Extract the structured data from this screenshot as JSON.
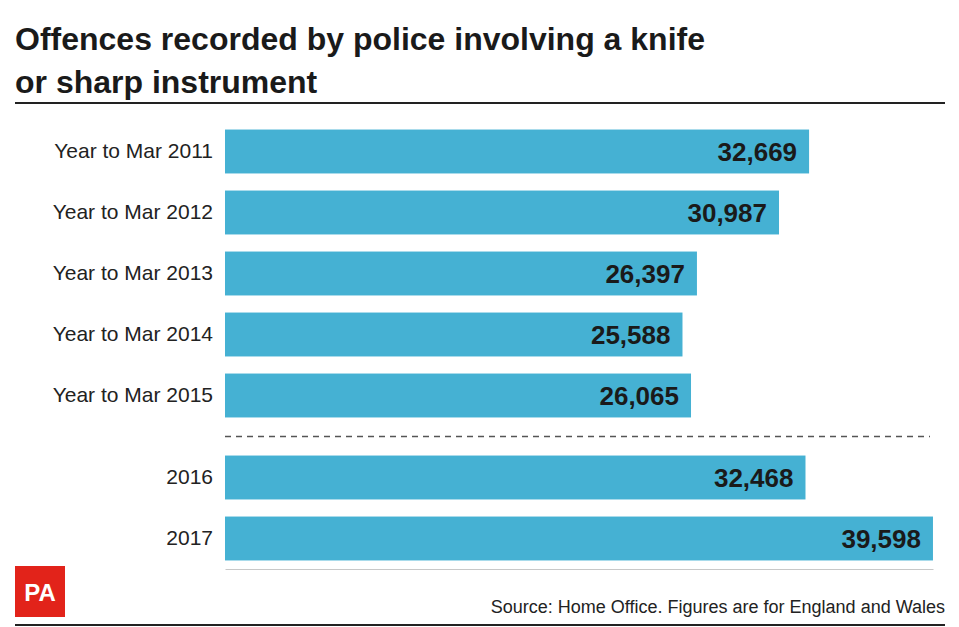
{
  "chart_data": {
    "type": "bar",
    "orientation": "horizontal",
    "title": "Offences recorded by police involving a knife or sharp instrument",
    "categories": [
      "Year to Mar 2011",
      "Year to Mar 2012",
      "Year to Mar 2013",
      "Year to Mar 2014",
      "Year to Mar 2015",
      "2016",
      "2017"
    ],
    "values": [
      32669,
      30987,
      26397,
      25588,
      26065,
      32468,
      39598
    ],
    "value_labels": [
      "32,669",
      "30,987",
      "26,397",
      "25,588",
      "26,065",
      "32,468",
      "39,598"
    ],
    "color": "#45b1d3",
    "xlim": [
      0,
      39600
    ],
    "data_labels": true,
    "tick_labels": "y",
    "grid": false,
    "source": "Source: Home Office. Figures are for England and Wales",
    "logo": "PA"
  }
}
